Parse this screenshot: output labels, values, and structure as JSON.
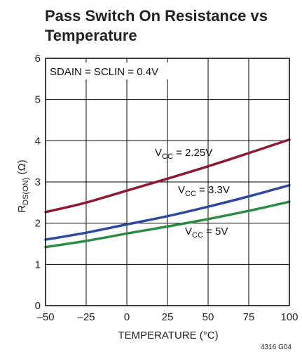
{
  "chart_data": {
    "type": "line",
    "title": [
      "Pass Switch On Resistance vs",
      "Temperature"
    ],
    "xlabel": "TEMPERATURE (°C)",
    "ylabel": {
      "prefix": "R",
      "sub": "DS(ON)",
      "suffix": " (Ω)"
    },
    "xlim": [
      -50,
      100
    ],
    "ylim": [
      0,
      6
    ],
    "x_ticks": [
      -50,
      -25,
      0,
      25,
      50,
      75,
      100
    ],
    "x_tick_labels": [
      "–50",
      "–25",
      "0",
      "25",
      "50",
      "75",
      "100"
    ],
    "y_ticks": [
      0,
      1,
      2,
      3,
      4,
      5,
      6
    ],
    "y_tick_labels": [
      "0",
      "1",
      "2",
      "3",
      "4",
      "5",
      "6"
    ],
    "grid": true,
    "annotation": "SDAIN = SCLIN = 0.4V",
    "figure_id": "4316 G04",
    "series": [
      {
        "label_prefix": "V",
        "label_sub": "CC",
        "label_suffix": " = 2.25V",
        "color": "#8b1a33",
        "x": [
          -50,
          -25,
          0,
          25,
          50,
          75,
          100
        ],
        "y": [
          2.27,
          2.5,
          2.79,
          3.08,
          3.38,
          3.7,
          4.03
        ]
      },
      {
        "label_prefix": "V",
        "label_sub": "CC",
        "label_suffix": " = 3.3V",
        "color": "#2f4a9a",
        "x": [
          -50,
          -25,
          0,
          25,
          50,
          75,
          100
        ],
        "y": [
          1.6,
          1.77,
          1.97,
          2.17,
          2.4,
          2.65,
          2.92
        ]
      },
      {
        "label_prefix": "V",
        "label_sub": "CC",
        "label_suffix": " = 5V",
        "color": "#2e8b47",
        "x": [
          -50,
          -25,
          0,
          25,
          50,
          75,
          100
        ],
        "y": [
          1.42,
          1.57,
          1.75,
          1.92,
          2.1,
          2.3,
          2.52
        ]
      }
    ]
  }
}
